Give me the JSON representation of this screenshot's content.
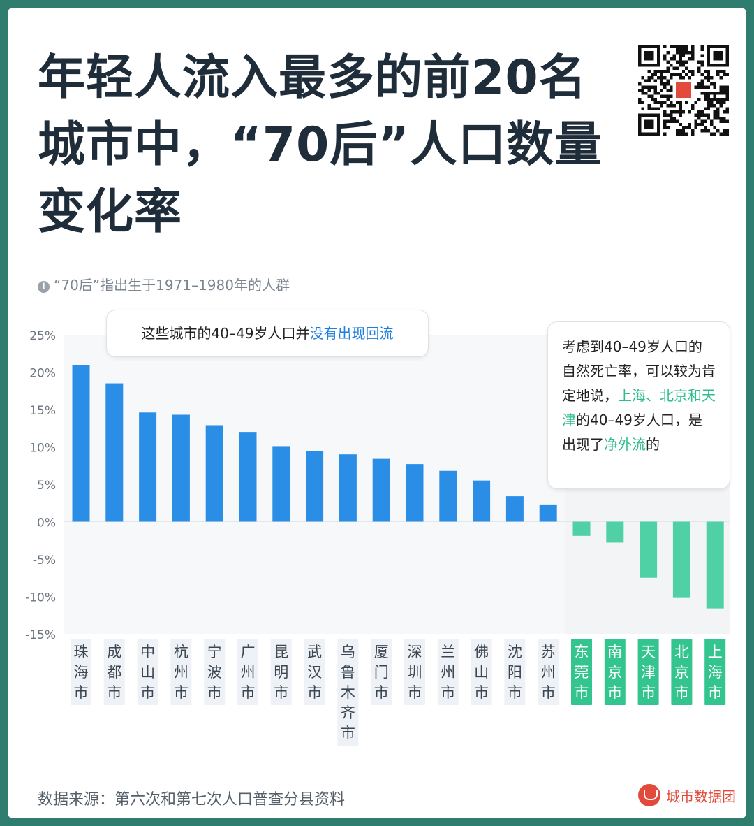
{
  "title": "年轻人流入最多的前20名城市中，“70后”人口数量变化率",
  "note": "“70后”指出生于1971–1980年的人群",
  "callout_left": {
    "text_plain": "这些城市的40–49岁人口并",
    "text_highlight": "没有出现回流"
  },
  "callout_right": {
    "p1": "考虑到40–49岁人口的自然死亡率，可以较为肯定地说，",
    "h1": "上海、北京和天津",
    "p2": "的40–49岁人口，是出现了",
    "h2": "净外流",
    "p3": "的"
  },
  "footer": {
    "source": "数据来源：第六次和第七次人口普查分县资料",
    "brand": "城市数据团"
  },
  "colors": {
    "positive": "#2b8ee6",
    "negative": "#4fd1a5",
    "label_pos_bg": "#eef1f5",
    "label_neg_bg": "#33c48f",
    "text_highlight_blue": "#1e7fe0",
    "text_highlight_green": "#2fbd8b"
  },
  "chart_data": {
    "type": "bar",
    "categories": [
      "珠海市",
      "成都市",
      "中山市",
      "杭州市",
      "宁波市",
      "广州市",
      "昆明市",
      "武汉市",
      "乌鲁木齐市",
      "厦门市",
      "深圳市",
      "兰州市",
      "佛山市",
      "沈阳市",
      "苏州市",
      "东莞市",
      "南京市",
      "天津市",
      "北京市",
      "上海市"
    ],
    "values": [
      20.9,
      18.5,
      14.6,
      14.3,
      12.9,
      12.0,
      10.1,
      9.4,
      9.0,
      8.4,
      7.7,
      6.8,
      5.5,
      3.4,
      2.3,
      -1.9,
      -2.8,
      -7.5,
      -10.2,
      -11.6
    ],
    "ylim": [
      -15,
      25
    ],
    "yticks": [
      25,
      20,
      15,
      10,
      5,
      0,
      -5,
      -10,
      -15
    ],
    "ytick_labels": [
      "25%",
      "20%",
      "15%",
      "10%",
      "5%",
      "0%",
      "-5%",
      "-10%",
      "-15%"
    ],
    "grid": false,
    "highlight_negative": true
  }
}
